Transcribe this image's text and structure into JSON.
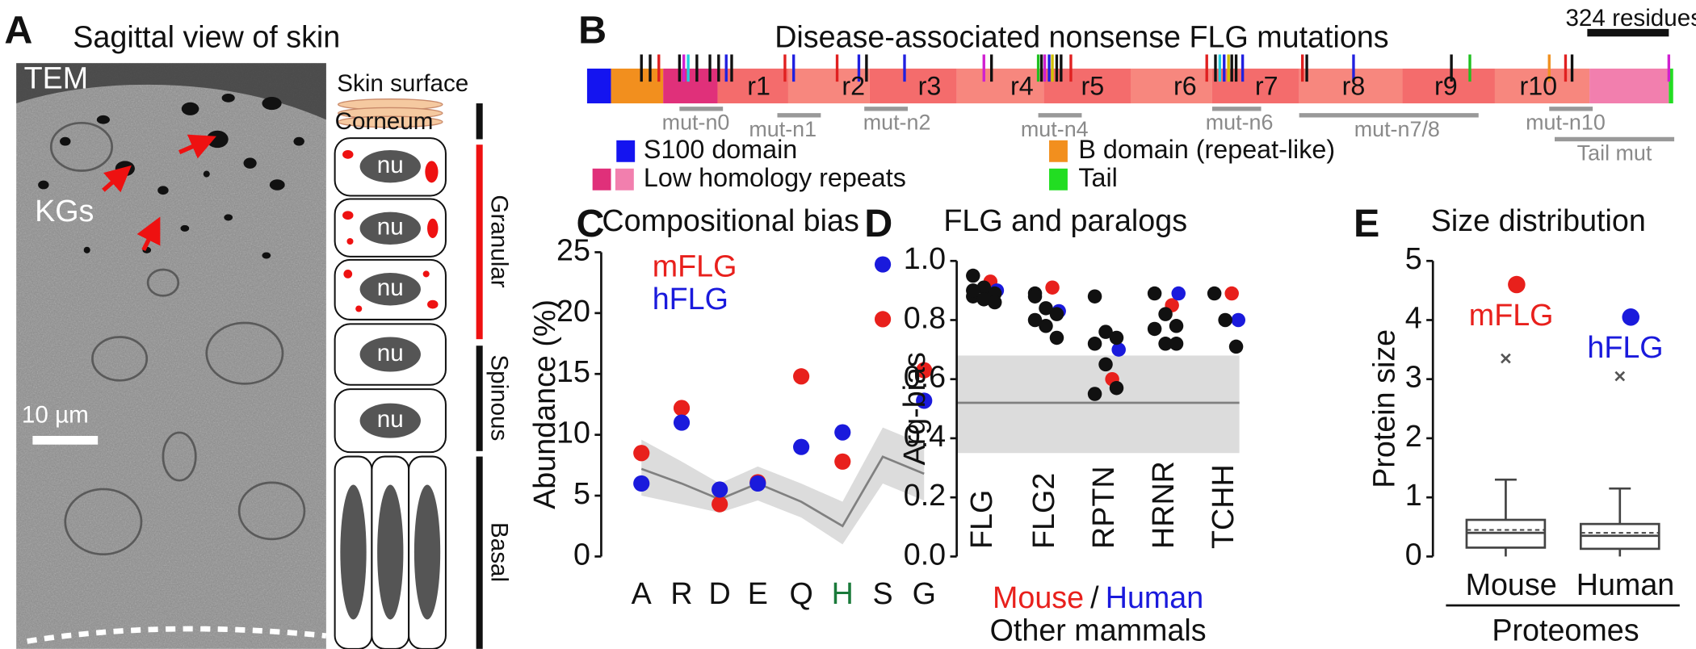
{
  "panel_a": {
    "letter": "A",
    "title": "Sagittal view of skin",
    "image_labels": [
      "TEM",
      "KGs"
    ],
    "scale_bar": "10 µm",
    "surface_label": "Skin surface",
    "corneum": "Corneum",
    "nuclei": [
      "nu",
      "nu",
      "nu",
      "nu",
      "nu"
    ],
    "layers": [
      "Granular",
      "Spinous",
      "Basal"
    ]
  },
  "panel_b": {
    "letter": "B",
    "title": "Disease-associated nonsense FLG mutations",
    "scale_bar": "324 residues",
    "repeats": [
      "r1",
      "r2",
      "r3",
      "r4",
      "r5",
      "r6",
      "r7",
      "r8",
      "r9",
      "r10"
    ],
    "mutation_regions": [
      "mut-n0",
      "mut-n1",
      "mut-n2",
      "mut-n4",
      "mut-n6",
      "mut-n7/8",
      "mut-n10",
      "Tail mut"
    ],
    "legend": [
      {
        "label": "S100 domain",
        "colors": [
          "#1414f0"
        ]
      },
      {
        "label": "Low homology repeats",
        "colors": [
          "#e0307a",
          "#f27fae"
        ]
      },
      {
        "label": "B domain (repeat-like)",
        "colors": [
          "#f28f1e"
        ]
      },
      {
        "label": "Tail",
        "colors": [
          "#22dd22"
        ]
      }
    ]
  },
  "chart_data": [
    {
      "type": "scatter",
      "letter": "C",
      "title": "Compositional bias",
      "y_label": "Abundance (%)",
      "categories": [
        "A",
        "R",
        "D",
        "E",
        "Q",
        "H",
        "S",
        "G"
      ],
      "category_colors": [
        "#111111",
        "#111111",
        "#111111",
        "#111111",
        "#111111",
        "#1a7a3a",
        "#111111",
        "#111111"
      ],
      "series": [
        {
          "name": "mFLG",
          "color": "#e8201c",
          "values": [
            8.5,
            12.2,
            4.3,
            6.1,
            14.8,
            7.8,
            19.5,
            15.3
          ]
        },
        {
          "name": "hFLG",
          "color": "#1a1adc",
          "values": [
            6.0,
            11.0,
            5.5,
            6.0,
            9.0,
            10.2,
            24.0,
            12.8
          ]
        }
      ],
      "background": {
        "color": "#dcdcdc",
        "line_color": "#808080",
        "values": [
          7.2,
          6.0,
          4.7,
          6.0,
          4.5,
          2.5,
          8.2,
          6.8
        ],
        "lower": [
          5.0,
          4.3,
          3.6,
          4.6,
          3.2,
          1.0,
          6.0,
          4.6
        ],
        "upper": [
          9.6,
          7.8,
          6.0,
          7.4,
          6.0,
          4.5,
          10.6,
          9.2
        ]
      },
      "ylim": [
        0,
        25
      ],
      "yticks": [
        0,
        5,
        10,
        15,
        20,
        25
      ]
    },
    {
      "type": "dot",
      "letter": "D",
      "title": "FLG and paralogs",
      "y_label": "Arg-bias",
      "categories": [
        "FLG",
        "FLG2",
        "RPTN",
        "HRNR",
        "TCHH"
      ],
      "series": [
        {
          "name": "Mouse",
          "color": "#e8201c",
          "values": [
            0.93,
            0.91,
            0.6,
            0.85,
            0.89
          ]
        },
        {
          "name": "Human",
          "color": "#1a1adc",
          "values": [
            0.9,
            0.83,
            0.7,
            0.89,
            0.8
          ]
        },
        {
          "name": "Other mammals",
          "color": "#111111",
          "values": [
            [
              0.95,
              0.91,
              0.89,
              0.88,
              0.87,
              0.86,
              0.9
            ],
            [
              0.89,
              0.84,
              0.82,
              0.8,
              0.78,
              0.74,
              0.88
            ],
            [
              0.88,
              0.76,
              0.74,
              0.72,
              0.65,
              0.57,
              0.55
            ],
            [
              0.89,
              0.82,
              0.78,
              0.77,
              0.72,
              0.72
            ],
            [
              0.89,
              0.8,
              0.71
            ]
          ]
        }
      ],
      "legend_separator": "/",
      "background": {
        "color": "#dcdcdc",
        "line_color": "#808080",
        "lower": 0.35,
        "upper": 0.68,
        "value": 0.52
      },
      "ylim": [
        0,
        1
      ],
      "yticks": [
        {
          "value": 0,
          "label": "0.0"
        },
        0.2,
        0.4,
        0.6,
        0.8,
        {
          "value": 1,
          "label": "1.0"
        }
      ]
    },
    {
      "type": "box",
      "letter": "E",
      "title": "Size distribution",
      "y_label": "Protein size",
      "x_label": "Proteomes",
      "categories": [
        "Mouse",
        "Human"
      ],
      "boxes": [
        {
          "whisker_low": 0,
          "q1": 0.15,
          "median": 0.4,
          "mean": 0.45,
          "q3": 0.62,
          "whisker_high": 1.3
        },
        {
          "whisker_low": 0,
          "q1": 0.13,
          "median": 0.35,
          "mean": 0.4,
          "q3": 0.55,
          "whisker_high": 1.15
        }
      ],
      "series": [
        {
          "name": "mFLG",
          "color": "#e8201c",
          "values": [
            4.6,
            null
          ]
        },
        {
          "name": "hFLG",
          "color": "#1a1adc",
          "values": [
            null,
            4.05
          ]
        }
      ],
      "markers": [
        3.35,
        3.05
      ],
      "ylim": [
        0,
        5
      ],
      "yticks": [
        0,
        1,
        2,
        3,
        4,
        5
      ]
    }
  ]
}
